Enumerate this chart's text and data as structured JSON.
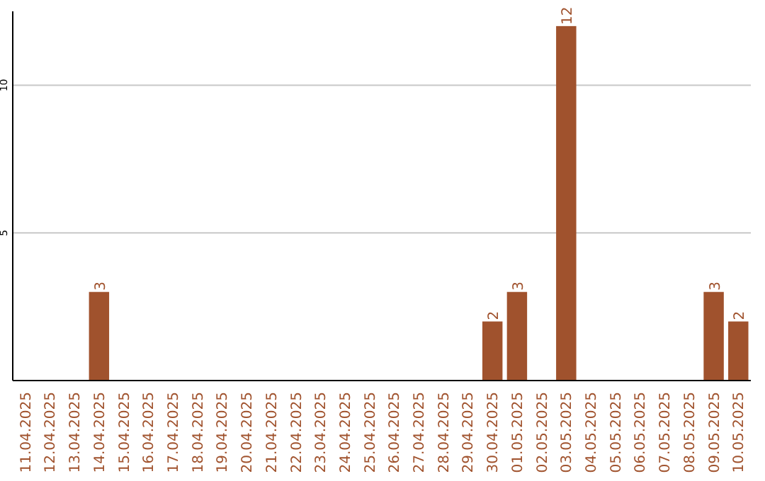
{
  "chart_data": {
    "type": "bar",
    "categories": [
      "11.04.2025",
      "12.04.2025",
      "13.04.2025",
      "14.04.2025",
      "15.04.2025",
      "16.04.2025",
      "17.04.2025",
      "18.04.2025",
      "19.04.2025",
      "20.04.2025",
      "21.04.2025",
      "22.04.2025",
      "23.04.2025",
      "24.04.2025",
      "25.04.2025",
      "26.04.2025",
      "27.04.2025",
      "28.04.2025",
      "29.04.2025",
      "30.04.2025",
      "01.05.2025",
      "02.05.2025",
      "03.05.2025",
      "04.05.2025",
      "05.05.2025",
      "06.05.2025",
      "07.05.2025",
      "08.05.2025",
      "09.05.2025",
      "10.05.2025"
    ],
    "values": [
      0,
      0,
      0,
      3,
      0,
      0,
      0,
      0,
      0,
      0,
      0,
      0,
      0,
      0,
      0,
      0,
      0,
      0,
      0,
      2,
      3,
      0,
      12,
      0,
      0,
      0,
      0,
      0,
      3,
      2
    ],
    "value_labels": [
      null,
      null,
      null,
      "3",
      null,
      null,
      null,
      null,
      null,
      null,
      null,
      null,
      null,
      null,
      null,
      null,
      null,
      null,
      null,
      "2",
      "3",
      null,
      "12",
      null,
      null,
      null,
      null,
      null,
      "3",
      "2"
    ],
    "color": "#a0522d",
    "ylim": [
      0,
      12.5
    ],
    "yticks": [
      5,
      10
    ],
    "grid": "y"
  }
}
